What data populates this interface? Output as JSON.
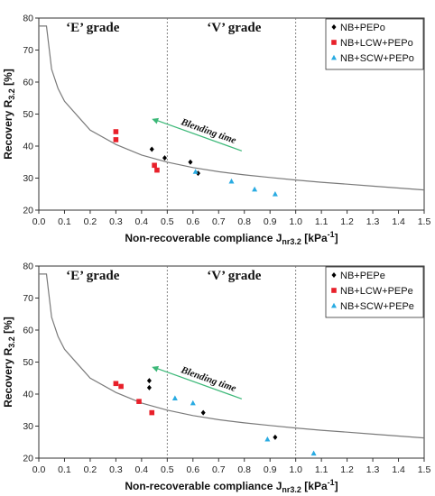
{
  "chart_data": [
    {
      "type": "scatter",
      "xlabel": "Non-recoverable compliance J",
      "xlabel_sub": "nr3.2",
      "xlabel_unit": " [kPa",
      "xlabel_sup": "-1",
      "xlabel_end": "]",
      "ylabel": "Recovery R",
      "ylabel_sub": "3.2",
      "ylabel_unit": " [%]",
      "xlim": [
        0.0,
        1.5
      ],
      "ylim": [
        20,
        80
      ],
      "x_ticks": [
        "0.0",
        "0.1",
        "0.2",
        "0.3",
        "0.4",
        "0.5",
        "0.6",
        "0.7",
        "0.8",
        "0.9",
        "1.0",
        "1.1",
        "1.2",
        "1.3",
        "1.4",
        "1.5"
      ],
      "y_ticks": [
        "20",
        "30",
        "40",
        "50",
        "60",
        "70",
        "80"
      ],
      "grid": false,
      "legend_position": "top-right",
      "regions": [
        {
          "label": "‘E’ grade",
          "x": 0.21
        },
        {
          "label": "‘V’ grade",
          "x": 0.76
        }
      ],
      "dividers_x": [
        0.5,
        1.0
      ],
      "annotation": {
        "text": "Blending time",
        "arrow_from": [
          0.79,
          38.5
        ],
        "arrow_to": [
          0.44,
          48.5
        ]
      },
      "boundary_curve": [
        [
          0.0,
          77.5
        ],
        [
          0.03,
          77.5
        ],
        [
          0.05,
          64
        ],
        [
          0.075,
          58
        ],
        [
          0.1,
          54
        ],
        [
          0.15,
          49.5
        ],
        [
          0.2,
          45
        ],
        [
          0.3,
          40.5
        ],
        [
          0.4,
          37.2
        ],
        [
          0.5,
          35
        ],
        [
          0.6,
          33.3
        ],
        [
          0.7,
          32
        ],
        [
          0.8,
          31
        ],
        [
          0.9,
          30.2
        ],
        [
          1.0,
          29.4
        ],
        [
          1.1,
          28.7
        ],
        [
          1.2,
          28.1
        ],
        [
          1.3,
          27.5
        ],
        [
          1.4,
          26.9
        ],
        [
          1.5,
          26.3
        ]
      ],
      "series": [
        {
          "name": "NB+PEPo",
          "color": "#000000",
          "marker": "diamond",
          "points": [
            [
              0.44,
              39
            ],
            [
              0.49,
              36.3
            ],
            [
              0.59,
              35
            ],
            [
              0.62,
              31.5
            ]
          ]
        },
        {
          "name": "NB+LCW+PEPo",
          "color": "#e8202a",
          "marker": "square",
          "points": [
            [
              0.3,
              44.5
            ],
            [
              0.3,
              42
            ],
            [
              0.45,
              34
            ],
            [
              0.46,
              32.5
            ]
          ]
        },
        {
          "name": "NB+SCW+PEPo",
          "color": "#29abe2",
          "marker": "triangle",
          "points": [
            [
              0.61,
              32
            ],
            [
              0.75,
              29
            ],
            [
              0.84,
              26.5
            ],
            [
              0.92,
              25
            ]
          ]
        }
      ]
    },
    {
      "type": "scatter",
      "xlabel": "Non-recoverable compliance J",
      "xlabel_sub": "nr3.2",
      "xlabel_unit": " [kPa",
      "xlabel_sup": "-1",
      "xlabel_end": "]",
      "ylabel": "Recovery R",
      "ylabel_sub": "3.2",
      "ylabel_unit": " [%]",
      "xlim": [
        0.0,
        1.5
      ],
      "ylim": [
        20,
        80
      ],
      "x_ticks": [
        "0.0",
        "0.1",
        "0.2",
        "0.3",
        "0.4",
        "0.5",
        "0.6",
        "0.7",
        "0.8",
        "0.9",
        "1.0",
        "1.1",
        "1.2",
        "1.3",
        "1.4",
        "1.5"
      ],
      "y_ticks": [
        "20",
        "30",
        "40",
        "50",
        "60",
        "70",
        "80"
      ],
      "grid": false,
      "legend_position": "top-right",
      "regions": [
        {
          "label": "‘E’ grade",
          "x": 0.21
        },
        {
          "label": "‘V’ grade",
          "x": 0.76
        }
      ],
      "dividers_x": [
        0.5,
        1.0
      ],
      "annotation": {
        "text": "Blending time",
        "arrow_from": [
          0.79,
          38.5
        ],
        "arrow_to": [
          0.44,
          48.5
        ]
      },
      "boundary_curve": [
        [
          0.0,
          77.5
        ],
        [
          0.03,
          77.5
        ],
        [
          0.05,
          64
        ],
        [
          0.075,
          58
        ],
        [
          0.1,
          54
        ],
        [
          0.15,
          49.5
        ],
        [
          0.2,
          45
        ],
        [
          0.3,
          40.5
        ],
        [
          0.4,
          37.2
        ],
        [
          0.5,
          35
        ],
        [
          0.6,
          33.3
        ],
        [
          0.7,
          32
        ],
        [
          0.8,
          31
        ],
        [
          0.9,
          30.2
        ],
        [
          1.0,
          29.4
        ],
        [
          1.1,
          28.7
        ],
        [
          1.2,
          28.1
        ],
        [
          1.3,
          27.5
        ],
        [
          1.4,
          26.9
        ],
        [
          1.5,
          26.3
        ]
      ],
      "series": [
        {
          "name": "NB+PEPe",
          "color": "#000000",
          "marker": "diamond",
          "points": [
            [
              0.43,
              44.2
            ],
            [
              0.43,
              42
            ],
            [
              0.64,
              34.2
            ],
            [
              0.92,
              26.5
            ]
          ]
        },
        {
          "name": "NB+LCW+PEPe",
          "color": "#e8202a",
          "marker": "square",
          "points": [
            [
              0.3,
              43.3
            ],
            [
              0.32,
              42.4
            ],
            [
              0.39,
              37.7
            ],
            [
              0.44,
              34.2
            ]
          ]
        },
        {
          "name": "NB+SCW+PEPe",
          "color": "#29abe2",
          "marker": "triangle",
          "points": [
            [
              0.53,
              38.7
            ],
            [
              0.6,
              37.2
            ],
            [
              0.89,
              25.9
            ],
            [
              1.07,
              21.5
            ]
          ]
        }
      ]
    }
  ]
}
